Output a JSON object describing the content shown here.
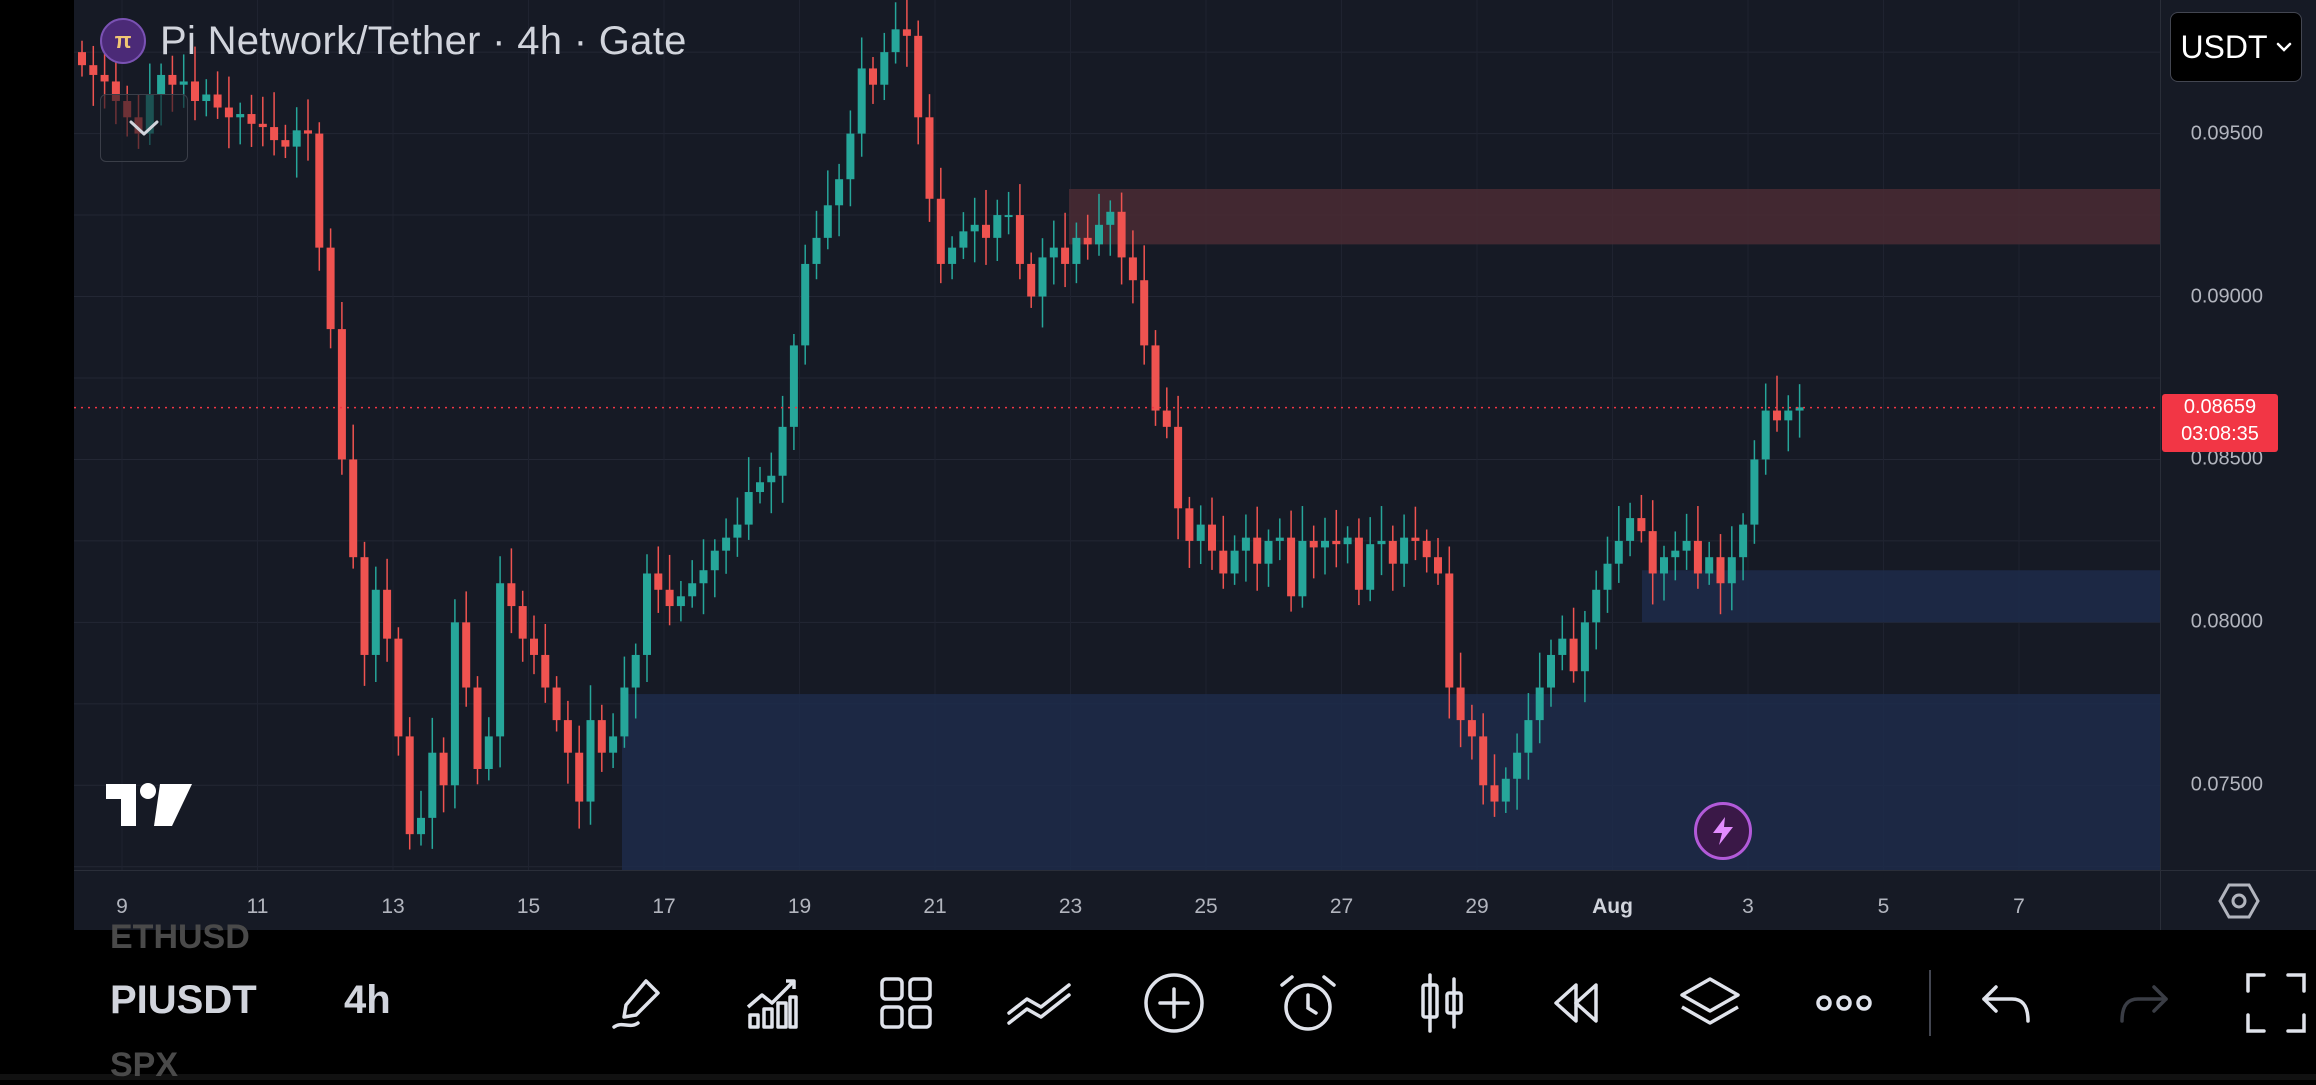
{
  "header": {
    "title": "Pi Network/Tether · 4h · Gate",
    "logo_glyph": "π",
    "currency": "USDT"
  },
  "price_axis": {
    "labels": [
      "0.09500",
      "0.09000",
      "0.08500",
      "0.08000",
      "0.07500"
    ]
  },
  "time_axis": {
    "labels": [
      "9",
      "11",
      "13",
      "15",
      "17",
      "19",
      "21",
      "23",
      "25",
      "27",
      "29",
      "Aug",
      "3",
      "5",
      "7"
    ]
  },
  "last_price": {
    "value": "0.08659",
    "countdown": "03:08:35",
    "color": "#f23645"
  },
  "zones": [
    {
      "kind": "supply",
      "price_low": 0.0916,
      "price_high": 0.0933,
      "color": "#4a2c34"
    },
    {
      "kind": "demand",
      "price_low": 0.08,
      "price_high": 0.0816,
      "color": "#1d2c4a"
    },
    {
      "kind": "demand",
      "price_low": 0.0724,
      "price_high": 0.0778,
      "color": "#1d2c4a"
    }
  ],
  "chart_data": {
    "type": "candlestick",
    "up_color": "#26a69a",
    "down_color": "#ef5350",
    "closes": [
      0.0971,
      0.0968,
      0.0966,
      0.096,
      0.0955,
      0.095,
      0.0962,
      0.0968,
      0.0965,
      0.0966,
      0.096,
      0.0962,
      0.0958,
      0.0955,
      0.0956,
      0.0953,
      0.0952,
      0.0948,
      0.0946,
      0.0951,
      0.095,
      0.0915,
      0.089,
      0.085,
      0.082,
      0.079,
      0.081,
      0.0795,
      0.0765,
      0.0735,
      0.074,
      0.076,
      0.075,
      0.08,
      0.078,
      0.0755,
      0.0765,
      0.0812,
      0.0805,
      0.0795,
      0.079,
      0.078,
      0.077,
      0.076,
      0.0745,
      0.077,
      0.076,
      0.0765,
      0.078,
      0.079,
      0.0815,
      0.081,
      0.0805,
      0.0808,
      0.0812,
      0.0816,
      0.0822,
      0.0826,
      0.083,
      0.084,
      0.0843,
      0.0845,
      0.086,
      0.0885,
      0.091,
      0.0918,
      0.0928,
      0.0936,
      0.095,
      0.097,
      0.0965,
      0.0975,
      0.0982,
      0.098,
      0.0955,
      0.093,
      0.091,
      0.0915,
      0.092,
      0.0922,
      0.0918,
      0.0925,
      0.0925,
      0.091,
      0.09,
      0.0912,
      0.0915,
      0.091,
      0.0918,
      0.0916,
      0.0922,
      0.0926,
      0.0912,
      0.0905,
      0.0885,
      0.0865,
      0.086,
      0.0835,
      0.0825,
      0.083,
      0.0822,
      0.0815,
      0.0822,
      0.0826,
      0.0818,
      0.0825,
      0.0826,
      0.0808,
      0.0825,
      0.0823,
      0.0825,
      0.0824,
      0.0826,
      0.081,
      0.0824,
      0.0825,
      0.0818,
      0.0826,
      0.0825,
      0.082,
      0.0815,
      0.078,
      0.077,
      0.0765,
      0.075,
      0.0745,
      0.0752,
      0.076,
      0.077,
      0.078,
      0.079,
      0.0795,
      0.0785,
      0.08,
      0.081,
      0.0818,
      0.0825,
      0.0832,
      0.0828,
      0.0815,
      0.082,
      0.0822,
      0.0825,
      0.0815,
      0.082,
      0.0812,
      0.082,
      0.083,
      0.085,
      0.0865,
      0.0862,
      0.0865,
      0.0866
    ],
    "x_range": [
      "8",
      "Aug 8"
    ],
    "y_range": [
      0.0724,
      0.0991
    ],
    "grid": true
  }
}
